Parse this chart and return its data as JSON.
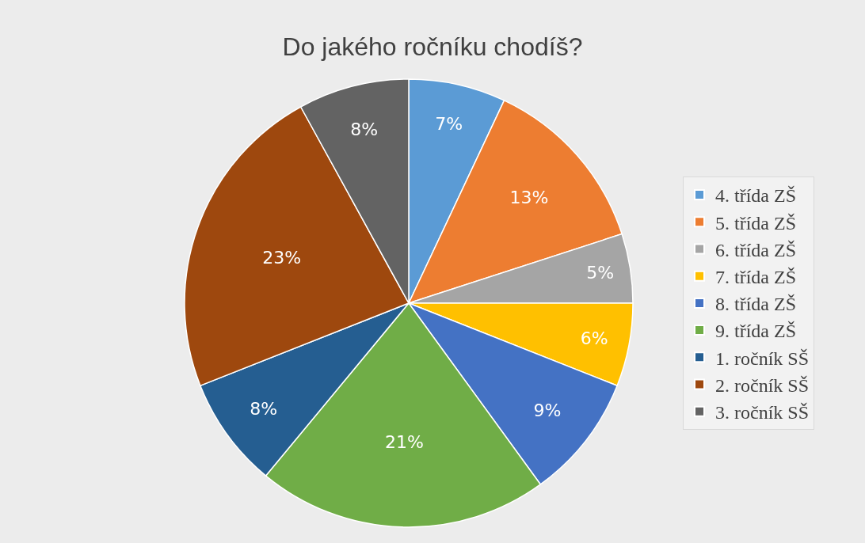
{
  "chart_data": {
    "type": "pie",
    "title": "Do jakého ročníku chodíš?",
    "categories": [
      "4. třída ZŠ",
      "5. třída ZŠ",
      "6. třída ZŠ",
      "7. třída ZŠ",
      "8. třída ZŠ",
      "9. třída ZŠ",
      "1. ročník SŠ",
      "2. ročník SŠ",
      "3. ročník SŠ"
    ],
    "values": [
      7,
      13,
      5,
      6,
      9,
      21,
      8,
      23,
      8
    ],
    "value_labels": [
      "7%",
      "13%",
      "5%",
      "6%",
      "9%",
      "21%",
      "8%",
      "23%",
      "8%"
    ],
    "colors": [
      "#5b9bd5",
      "#ed7d31",
      "#a5a5a5",
      "#ffc000",
      "#4472c4",
      "#70ad47",
      "#255e91",
      "#9e480e",
      "#636363"
    ],
    "legend": "right"
  }
}
